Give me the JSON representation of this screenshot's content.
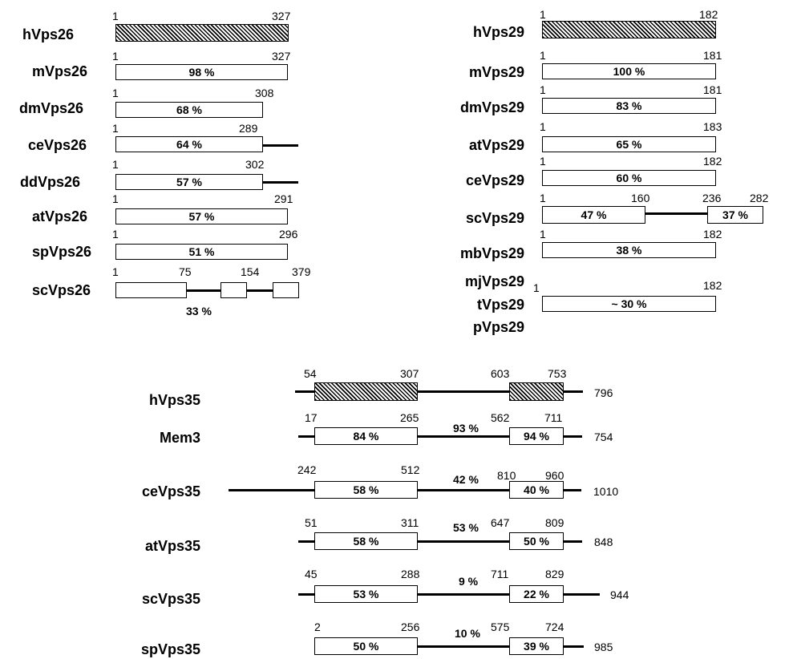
{
  "vps26": {
    "hVps26": {
      "name": "hVps26",
      "start": "1",
      "end": "327"
    },
    "mVps26": {
      "name": "mVps26",
      "start": "1",
      "end": "327",
      "identity": "98 %"
    },
    "dmVps26": {
      "name": "dmVps26",
      "start": "1",
      "end": "308",
      "identity": "68 %"
    },
    "ceVps26": {
      "name": "ceVps26",
      "start": "1",
      "end": "289",
      "identity": "64 %"
    },
    "ddVps26": {
      "name": "ddVps26",
      "start": "1",
      "end": "302",
      "identity": "57 %"
    },
    "atVps26": {
      "name": "atVps26",
      "start": "1",
      "end": "291",
      "identity": "57 %"
    },
    "spVps26": {
      "name": "spVps26",
      "start": "1",
      "end": "296",
      "identity": "51 %"
    },
    "scVps26": {
      "name": "scVps26",
      "start": "1",
      "mid1": "75",
      "mid2": "154",
      "end": "379",
      "identity": "33 %"
    }
  },
  "vps29": {
    "hVps29": {
      "name": "hVps29",
      "start": "1",
      "end": "182"
    },
    "mVps29": {
      "name": "mVps29",
      "start": "1",
      "end": "181",
      "identity": "100 %"
    },
    "dmVps29": {
      "name": "dmVps29",
      "start": "1",
      "end": "181",
      "identity": "83 %"
    },
    "atVps29": {
      "name": "atVps29",
      "start": "1",
      "end": "183",
      "identity": "65 %"
    },
    "ceVps29": {
      "name": "ceVps29",
      "start": "1",
      "end": "182",
      "identity": "60 %"
    },
    "scVps29": {
      "name": "scVps29",
      "start": "1",
      "mid1": "160",
      "mid2": "236",
      "end": "282",
      "identity1": "47 %",
      "identity2": "37 %"
    },
    "mbVps29": {
      "name": "mbVps29",
      "start": "1",
      "end": "182",
      "identity": "38 %"
    },
    "group": {
      "name1": "mjVps29",
      "name2": "tVps29",
      "name3": "pVps29",
      "start": "1",
      "end": "182",
      "identity": "~ 30 %"
    }
  },
  "vps35": {
    "hVps35": {
      "name": "hVps35",
      "d1_start": "54",
      "d1_end": "307",
      "d2_start": "603",
      "d2_end": "753",
      "length": "796"
    },
    "Mem3": {
      "name": "Mem3",
      "d1_start": "17",
      "d1_end": "265",
      "d2_start": "562",
      "d2_end": "711",
      "length": "754",
      "identity1": "84 %",
      "identity_mid": "93 %",
      "identity2": "94 %"
    },
    "ceVps35": {
      "name": "ceVps35",
      "d1_start": "242",
      "d1_end": "512",
      "d2_start": "810",
      "d2_end": "960",
      "length": "1010",
      "identity1": "58 %",
      "identity_mid": "42 %",
      "identity2": "40 %"
    },
    "atVps35": {
      "name": "atVps35",
      "d1_start": "51",
      "d1_end": "311",
      "d2_start": "647",
      "d2_end": "809",
      "length": "848",
      "identity1": "58 %",
      "identity_mid": "53 %",
      "identity2": "50 %"
    },
    "scVps35": {
      "name": "scVps35",
      "d1_start": "45",
      "d1_end": "288",
      "d2_start": "711",
      "d2_end": "829",
      "length": "944",
      "identity1": "53 %",
      "identity_mid": "9 %",
      "identity2": "22 %"
    },
    "spVps35": {
      "name": "spVps35",
      "d1_start": "2",
      "d1_end": "256",
      "d2_start": "575",
      "d2_end": "724",
      "length": "985",
      "identity1": "50 %",
      "identity_mid": "10 %",
      "identity2": "39 %"
    }
  }
}
